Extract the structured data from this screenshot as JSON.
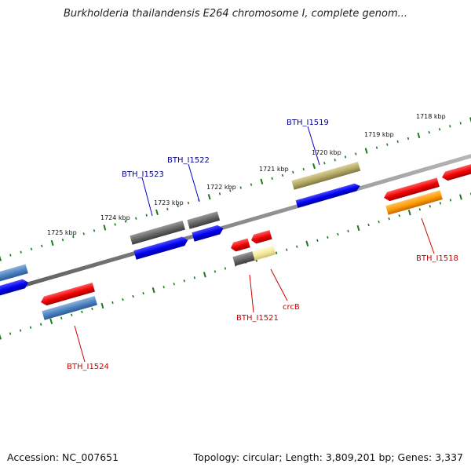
{
  "title": "Burkholderia thailandensis E264 chromosome I, complete genom...",
  "footer": {
    "accession": "Accession: NC_007651",
    "summary": "Topology: circular; Length: 3,809,201 bp; Genes: 3,337"
  },
  "kbp_labels": [
    "1718 kbp",
    "1719 kbp",
    "1720 kbp",
    "1721 kbp",
    "1722 kbp",
    "1723 kbp",
    "1724 kbp",
    "1725 kbp"
  ],
  "gene_labels": {
    "bth_i1519": "BTH_I1519",
    "bth_i1522": "BTH_I1522",
    "bth_i1523": "BTH_I1523",
    "bth_i1518": "BTH_I1518",
    "bth_i1521": "BTH_I1521",
    "crcb": "crcB",
    "bth_i1524": "BTH_I1524"
  },
  "colors": {
    "forward_label": "#00008b",
    "reverse_label": "#cc0000",
    "tick": "#1a7a1a",
    "backbone": "#808080"
  }
}
